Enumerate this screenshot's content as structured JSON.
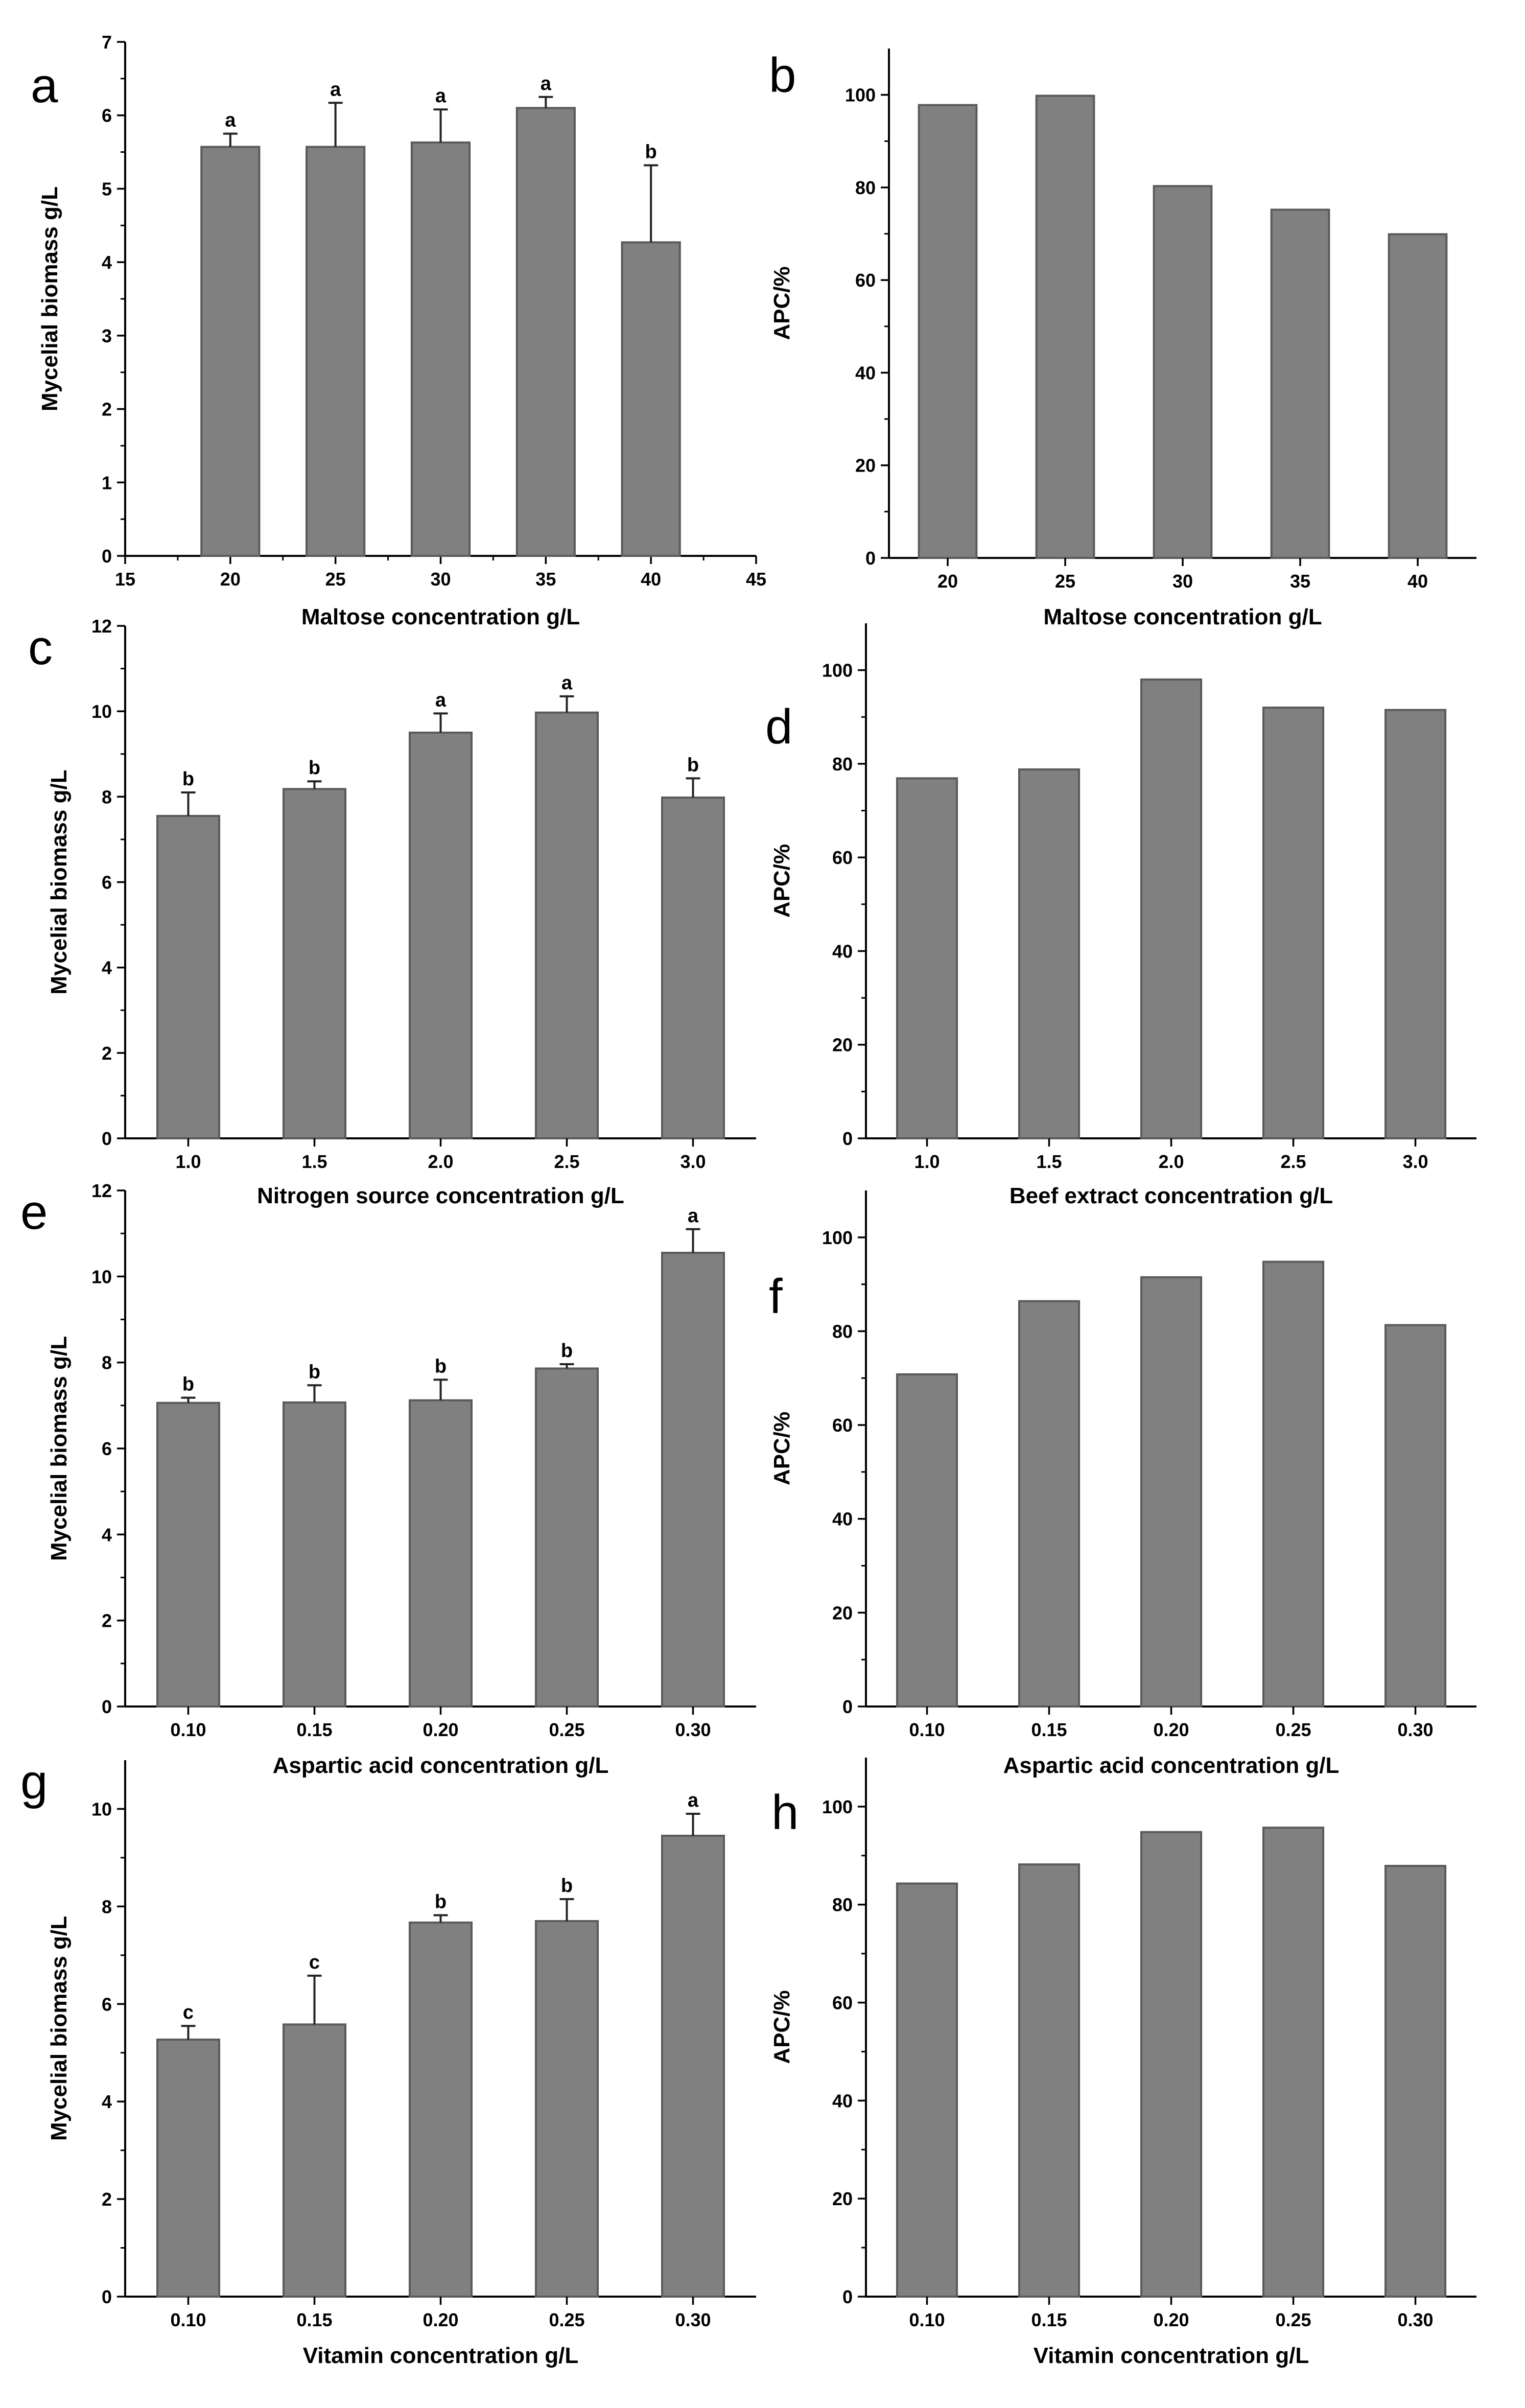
{
  "chart_data": [
    {
      "id": "a",
      "panel_label": "a",
      "type": "bar",
      "x_axis_type": "numeric",
      "categories": [
        "20",
        "25",
        "30",
        "35",
        "40"
      ],
      "x": [
        20,
        25,
        30,
        35,
        40
      ],
      "values": [
        5.57,
        5.57,
        5.63,
        6.1,
        4.27
      ],
      "error": [
        0.18,
        0.6,
        0.45,
        0.15,
        1.05
      ],
      "sig_letters": [
        "a",
        "a",
        "a",
        "a",
        "b"
      ],
      "xlabel": "Maltose concentration g/L",
      "ylabel": "Mycelial biomass g/L",
      "xlim": [
        15,
        45
      ],
      "xticks": [
        "15",
        "20",
        "25",
        "30",
        "35",
        "40",
        "45"
      ],
      "ylim": [
        0,
        7
      ],
      "yticks": [
        "0",
        "1",
        "2",
        "3",
        "4",
        "5",
        "6",
        "7"
      ],
      "grid": false
    },
    {
      "id": "b",
      "panel_label": "b",
      "type": "bar",
      "categories": [
        "20",
        "25",
        "30",
        "35",
        "40"
      ],
      "values": [
        97.8,
        99.8,
        80.3,
        75.2,
        69.9
      ],
      "xlabel": "Maltose concentration g/L",
      "ylabel": "APC/%",
      "ylim": [
        0,
        110
      ],
      "yticks": [
        "0",
        "20",
        "40",
        "60",
        "80",
        "100"
      ],
      "grid": false
    },
    {
      "id": "c",
      "panel_label": "c",
      "type": "bar",
      "categories": [
        "1.0",
        "1.5",
        "2.0",
        "2.5",
        "3.0"
      ],
      "values": [
        7.55,
        8.18,
        9.5,
        9.97,
        7.98
      ],
      "error": [
        0.55,
        0.18,
        0.45,
        0.38,
        0.45
      ],
      "sig_letters": [
        "b",
        "b",
        "a",
        "a",
        "b"
      ],
      "xlabel": "Nitrogen source concentration g/L",
      "ylabel": "Mycelial biomass g/L",
      "ylim": [
        0,
        12
      ],
      "yticks": [
        "0",
        "2",
        "4",
        "6",
        "8",
        "10",
        "12"
      ],
      "grid": false
    },
    {
      "id": "d",
      "panel_label": "d",
      "type": "bar",
      "categories": [
        "1.0",
        "1.5",
        "2.0",
        "2.5",
        "3.0"
      ],
      "values": [
        76.9,
        78.8,
        98.0,
        92.0,
        91.5
      ],
      "xlabel": "Beef extract concentration g/L",
      "ylabel": "APC/%",
      "ylim": [
        0,
        110
      ],
      "yticks": [
        "0",
        "20",
        "40",
        "60",
        "80",
        "100"
      ],
      "grid": false
    },
    {
      "id": "e",
      "panel_label": "e",
      "type": "bar",
      "categories": [
        "0.10",
        "0.15",
        "0.20",
        "0.25",
        "0.30"
      ],
      "values": [
        7.06,
        7.07,
        7.12,
        7.86,
        10.55
      ],
      "error": [
        0.12,
        0.4,
        0.48,
        0.1,
        0.55
      ],
      "sig_letters": [
        "b",
        "b",
        "b",
        "b",
        "a"
      ],
      "xlabel": "Aspartic acid concentration g/L",
      "ylabel": "Mycelial biomass g/L",
      "ylim": [
        0,
        12
      ],
      "yticks": [
        "0",
        "2",
        "4",
        "6",
        "8",
        "10",
        "12"
      ],
      "grid": false
    },
    {
      "id": "f",
      "panel_label": "f",
      "type": "bar",
      "categories": [
        "0.10",
        "0.15",
        "0.20",
        "0.25",
        "0.30"
      ],
      "values": [
        70.8,
        86.4,
        91.5,
        94.8,
        81.3
      ],
      "xlabel": "Aspartic acid concentration g/L",
      "ylabel": "APC/%",
      "ylim": [
        0,
        110
      ],
      "yticks": [
        "0",
        "20",
        "40",
        "60",
        "80",
        "100"
      ],
      "grid": false
    },
    {
      "id": "g",
      "panel_label": "g",
      "type": "bar",
      "categories": [
        "0.10",
        "0.15",
        "0.20",
        "0.25",
        "0.30"
      ],
      "values": [
        5.27,
        5.58,
        7.67,
        7.7,
        9.45
      ],
      "error": [
        0.28,
        1.0,
        0.15,
        0.45,
        0.45
      ],
      "sig_letters": [
        "c",
        "c",
        "b",
        "b",
        "a"
      ],
      "xlabel": "Vitamin concentration g/L",
      "ylabel": "Mycelial biomass g/L",
      "ylim": [
        0,
        11
      ],
      "yticks": [
        "0",
        "2",
        "4",
        "6",
        "8",
        "10"
      ],
      "grid": false
    },
    {
      "id": "h",
      "panel_label": "h",
      "type": "bar",
      "categories": [
        "0.10",
        "0.15",
        "0.20",
        "0.25",
        "0.30"
      ],
      "values": [
        84.3,
        88.2,
        94.8,
        95.7,
        87.9
      ],
      "xlabel": "Vitamin concentration g/L",
      "ylabel": "APC/%",
      "ylim": [
        0,
        110
      ],
      "yticks": [
        "0",
        "20",
        "40",
        "60",
        "80",
        "100"
      ],
      "grid": false
    }
  ]
}
